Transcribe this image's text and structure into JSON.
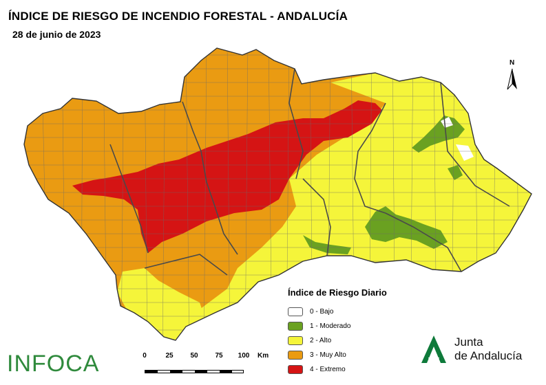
{
  "title": "ÍNDICE DE RIESGO DE INCENDIO FORESTAL - ANDALUCÍA",
  "date": "28 de junio de 2023",
  "legend": {
    "title": "Índice de Riesgo Diario",
    "items": [
      {
        "label": "0 - Bajo",
        "color": "#ffffff"
      },
      {
        "label": "1 - Moderado",
        "color": "#6aa121"
      },
      {
        "label": "2 - Alto",
        "color": "#f5f53a"
      },
      {
        "label": "3 - Muy Alto",
        "color": "#ea9b12"
      },
      {
        "label": "4 - Extremo",
        "color": "#d51414"
      }
    ]
  },
  "scale": {
    "ticks": [
      "0",
      "25",
      "50",
      "75",
      "100"
    ],
    "unit": "Km"
  },
  "north_label": "N",
  "logos": {
    "infoca": "INFOCA",
    "junta_line1": "Junta",
    "junta_line2": "de Andalucía"
  },
  "colors": {
    "muy_alto": "#ea9b12",
    "extremo": "#d51414",
    "alto": "#f5f53a",
    "moderado": "#6aa121",
    "borders": "#555555",
    "junta_green": "#0e7a3a"
  }
}
